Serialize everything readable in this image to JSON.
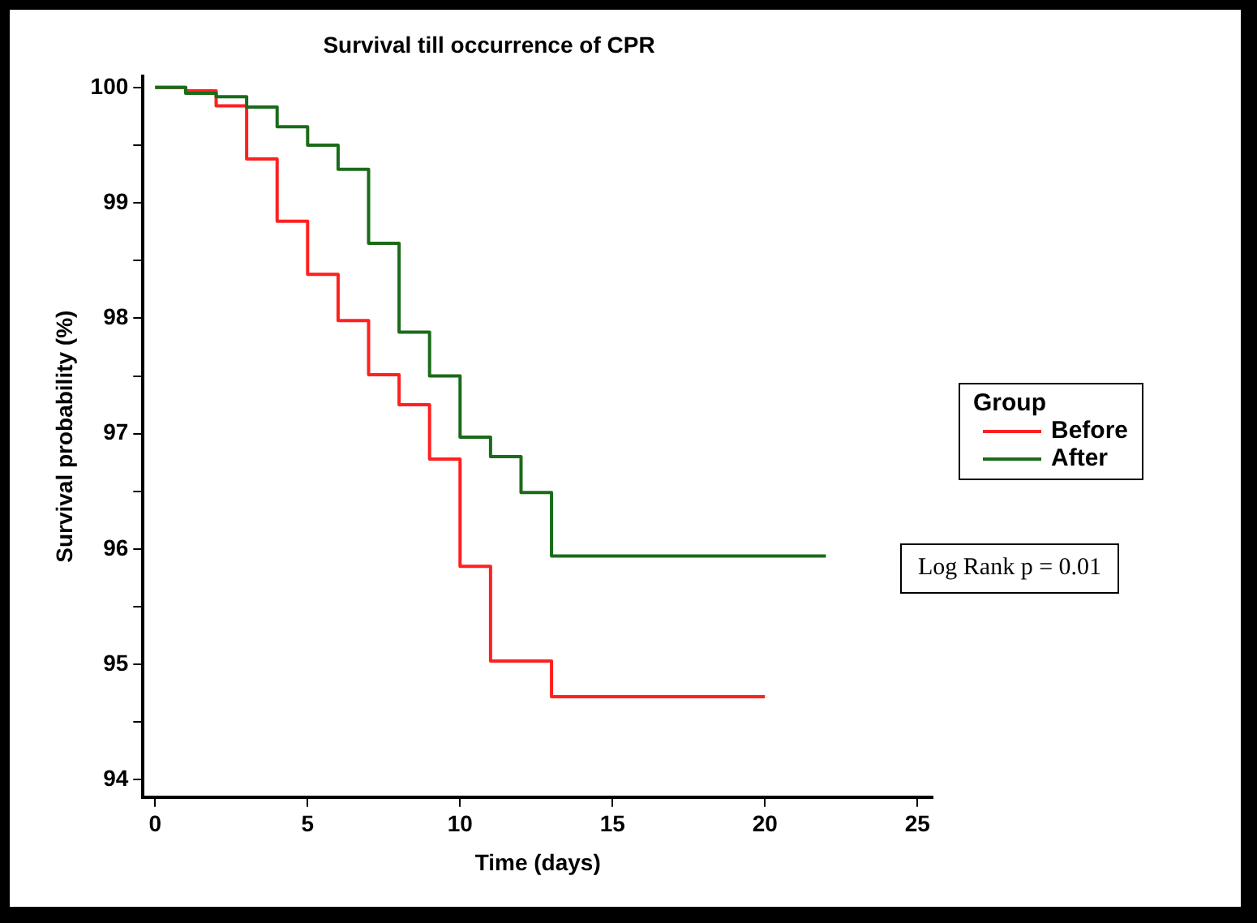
{
  "chart_data": {
    "type": "step",
    "title": "Survival till occurrence of CPR",
    "xlabel": "Time (days)",
    "ylabel": "Survival probability (%)",
    "legend_title": "Group",
    "legend": "right",
    "xlim": [
      -0.4,
      25.5
    ],
    "xticks": [
      0,
      5,
      10,
      15,
      20,
      25
    ],
    "ylim": [
      93.85,
      100.1
    ],
    "yticks": [
      94,
      {
        "value": 94.5,
        "label": null
      },
      95,
      {
        "value": 95.5,
        "label": null
      },
      96,
      {
        "value": 96.5,
        "label": null
      },
      97,
      {
        "value": 97.5,
        "label": null
      },
      98,
      {
        "value": 98.5,
        "label": null
      },
      99,
      {
        "value": 99.5,
        "label": null
      },
      100
    ],
    "grid": false,
    "annotations": [
      "Log Rank p = 0.01"
    ],
    "series": [
      {
        "name": "Before",
        "color": "#ff2020",
        "x": [
          0,
          1,
          2,
          3,
          4,
          5,
          6,
          7,
          8,
          9,
          10,
          11,
          12,
          13,
          14,
          15,
          16,
          17,
          18,
          19,
          20
        ],
        "values": [
          100,
          99.97,
          99.84,
          99.38,
          98.84,
          98.38,
          97.98,
          97.51,
          97.25,
          96.78,
          95.85,
          95.03,
          95.03,
          94.72,
          94.72,
          94.72,
          94.72,
          94.72,
          94.72,
          94.72,
          94.72
        ]
      },
      {
        "name": "After",
        "color": "#1a6b1a",
        "x": [
          0,
          1,
          2,
          3,
          4,
          5,
          6,
          7,
          8,
          9,
          10,
          11,
          12,
          13,
          14,
          15,
          16,
          17,
          18,
          19,
          22
        ],
        "values": [
          100,
          99.95,
          99.92,
          99.83,
          99.66,
          99.5,
          99.29,
          98.65,
          97.88,
          97.5,
          96.97,
          96.8,
          96.49,
          95.94,
          95.94,
          95.94,
          95.94,
          95.94,
          95.94,
          95.94,
          95.94
        ]
      }
    ]
  }
}
